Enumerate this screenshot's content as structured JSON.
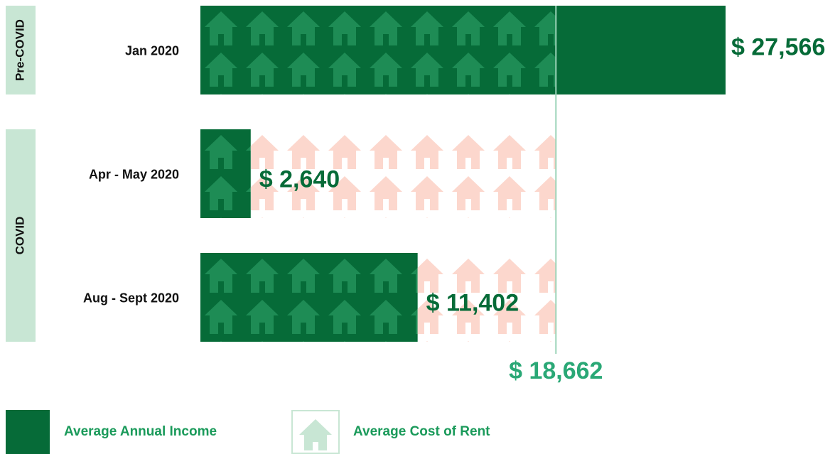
{
  "chart_data": {
    "type": "bar",
    "color": "#066b38",
    "groups": [
      {
        "label": "Pre-COVID",
        "categories": [
          "Jan 2020"
        ],
        "values": [
          27566
        ],
        "value_labels": [
          "$ 27,566"
        ]
      },
      {
        "label": "COVID",
        "categories": [
          "Apr - May 2020",
          "Aug - Sept 2020"
        ],
        "values": [
          2640,
          11402
        ],
        "value_labels": [
          "$ 2,640",
          "$ 11,402"
        ]
      }
    ],
    "reference": {
      "value": 18662,
      "label": "$ 18,662",
      "color": "#9bd4b8"
    },
    "legend": [
      {
        "name": "Average Annual Income",
        "color": "#066b38"
      },
      {
        "name": "Average Cost of Rent",
        "color": "#c8e6d4"
      }
    ]
  }
}
